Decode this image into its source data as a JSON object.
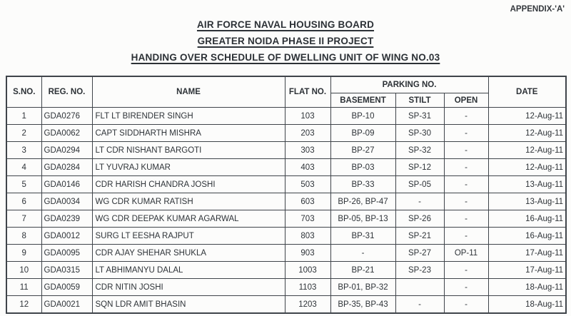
{
  "page": {
    "appendix_label": "APPENDIX-'A'",
    "titles": [
      "AIR FORCE NAVAL HOUSING BOARD",
      "GREATER NOIDA PHASE II PROJECT",
      "HANDING OVER SCHEDULE OF DWELLING UNIT OF WING NO.03"
    ]
  },
  "colors": {
    "paper": "#fcfcfb",
    "ink": "#2e3338",
    "border": "#3f444a"
  },
  "table": {
    "headers": {
      "sno": "S.NO.",
      "reg_no": "REG. NO.",
      "name": "NAME",
      "flat_no": "FLAT NO.",
      "parking": "PARKING NO.",
      "basement": "BASEMENT",
      "stilt": "STILT",
      "open": "OPEN",
      "date": "DATE"
    },
    "rows": [
      {
        "sno": "1",
        "reg_no": "GDA0276",
        "name": "FLT LT BIRENDER SINGH",
        "flat_no": "103",
        "basement": "BP-10",
        "stilt": "SP-31",
        "open": "-",
        "date": "12-Aug-11"
      },
      {
        "sno": "2",
        "reg_no": "GDA0062",
        "name": "CAPT SIDDHARTH MISHRA",
        "flat_no": "203",
        "basement": "BP-09",
        "stilt": "SP-30",
        "open": "-",
        "date": "12-Aug-11"
      },
      {
        "sno": "3",
        "reg_no": "GDA0294",
        "name": "LT CDR NISHANT BARGOTI",
        "flat_no": "303",
        "basement": "BP-27",
        "stilt": "SP-32",
        "open": "-",
        "date": "12-Aug-11"
      },
      {
        "sno": "4",
        "reg_no": "GDA0284",
        "name": "LT YUVRAJ KUMAR",
        "flat_no": "403",
        "basement": "BP-03",
        "stilt": "SP-12",
        "open": "-",
        "date": "12-Aug-11"
      },
      {
        "sno": "5",
        "reg_no": "GDA0146",
        "name": "CDR HARISH CHANDRA JOSHI",
        "flat_no": "503",
        "basement": "BP-33",
        "stilt": "SP-05",
        "open": "-",
        "date": "13-Aug-11"
      },
      {
        "sno": "6",
        "reg_no": "GDA0034",
        "name": "WG CDR KUMAR RATISH",
        "flat_no": "603",
        "basement": "BP-26, BP-47",
        "stilt": "-",
        "open": "-",
        "date": "13-Aug-11"
      },
      {
        "sno": "7",
        "reg_no": "GDA0239",
        "name": "WG CDR DEEPAK KUMAR AGARWAL",
        "flat_no": "703",
        "basement": "BP-05, BP-13",
        "stilt": "SP-26",
        "open": "-",
        "date": "16-Aug-11"
      },
      {
        "sno": "8",
        "reg_no": "GDA0012",
        "name": "SURG LT EESHA RAJPUT",
        "flat_no": "803",
        "basement": "BP-31",
        "stilt": "SP-21",
        "open": "-",
        "date": "16-Aug-11"
      },
      {
        "sno": "9",
        "reg_no": "GDA0095",
        "name": "CDR AJAY SHEHAR SHUKLA",
        "flat_no": "903",
        "basement": "-",
        "stilt": "SP-27",
        "open": "OP-11",
        "date": "17-Aug-11"
      },
      {
        "sno": "10",
        "reg_no": "GDA0315",
        "name": "LT ABHIMANYU DALAL",
        "flat_no": "1003",
        "basement": "BP-21",
        "stilt": "SP-23",
        "open": "-",
        "date": "17-Aug-11"
      },
      {
        "sno": "11",
        "reg_no": "GDA0059",
        "name": "CDR NITIN JOSHI",
        "flat_no": "1103",
        "basement": "BP-01, BP-32",
        "stilt": "",
        "open": "-",
        "date": "18-Aug-11"
      },
      {
        "sno": "12",
        "reg_no": "GDA0021",
        "name": "SQN LDR AMIT BHASIN",
        "flat_no": "1203",
        "basement": "BP-35, BP-43",
        "stilt": "-",
        "open": "-",
        "date": "18-Aug-11"
      }
    ]
  }
}
